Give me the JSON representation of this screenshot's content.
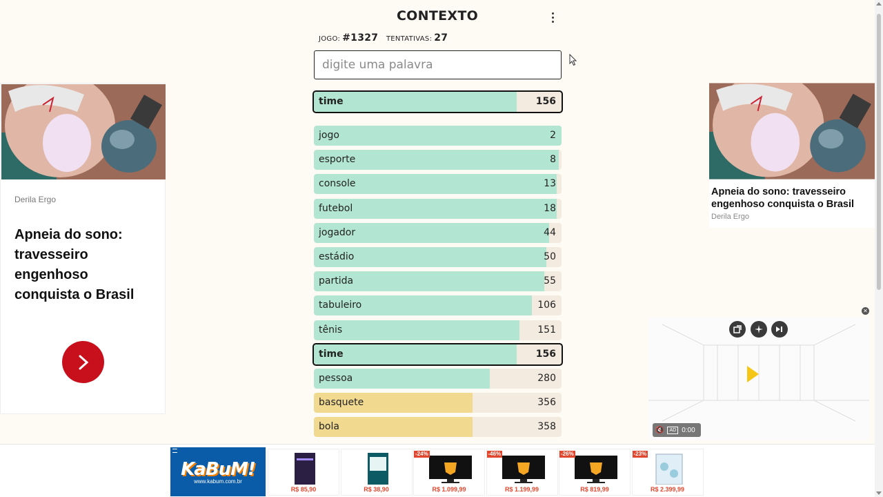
{
  "header": {
    "title": "CONTEXTO",
    "game_label": "JOGO:",
    "game_number": "#1327",
    "attempts_label": "TENTATIVAS:",
    "attempts_count": "27"
  },
  "search": {
    "placeholder": "digite uma palavra",
    "value": ""
  },
  "last_guess": {
    "word": "time",
    "rank": "156",
    "fill": 0.82,
    "color": "green"
  },
  "guesses": [
    {
      "word": "jogo",
      "rank": "2",
      "fill": 1.0,
      "color": "green"
    },
    {
      "word": "esporte",
      "rank": "8",
      "fill": 0.99,
      "color": "green"
    },
    {
      "word": "console",
      "rank": "13",
      "fill": 0.98,
      "color": "green"
    },
    {
      "word": "futebol",
      "rank": "18",
      "fill": 0.98,
      "color": "green"
    },
    {
      "word": "jogador",
      "rank": "44",
      "fill": 0.95,
      "color": "green"
    },
    {
      "word": "estádio",
      "rank": "50",
      "fill": 0.94,
      "color": "green"
    },
    {
      "word": "partida",
      "rank": "55",
      "fill": 0.93,
      "color": "green"
    },
    {
      "word": "tabuleiro",
      "rank": "106",
      "fill": 0.88,
      "color": "green"
    },
    {
      "word": "tênis",
      "rank": "151",
      "fill": 0.83,
      "color": "green"
    },
    {
      "word": "time",
      "rank": "156",
      "fill": 0.82,
      "color": "green",
      "highlight": true
    },
    {
      "word": "pessoa",
      "rank": "280",
      "fill": 0.71,
      "color": "green"
    },
    {
      "word": "basquete",
      "rank": "356",
      "fill": 0.64,
      "color": "yellow"
    },
    {
      "word": "bola",
      "rank": "358",
      "fill": 0.64,
      "color": "yellow"
    }
  ],
  "ad_left": {
    "brand": "Derila Ergo",
    "headline": "Apneia do sono: travesseiro engenhoso conquista o Brasil"
  },
  "ad_right": {
    "headline": "Apneia do sono: travesseiro engenhoso conquista o Brasil",
    "brand": "Derila Ergo"
  },
  "video_ad": {
    "time": "0:00",
    "badge": "AD"
  },
  "bottom_banner": {
    "brand": "KaBuM!",
    "url": "www.kabum.com.br",
    "products": [
      {
        "price": "R$ 85,90",
        "discount": "",
        "kind": "software"
      },
      {
        "price": "R$ 38,90",
        "discount": "",
        "kind": "box"
      },
      {
        "price": "R$ 1.099,99",
        "discount": "-24%",
        "kind": "monitor"
      },
      {
        "price": "R$ 1.199,99",
        "discount": "-46%",
        "kind": "monitor"
      },
      {
        "price": "R$ 819,99",
        "discount": "-26%",
        "kind": "monitor"
      },
      {
        "price": "R$ 2.399,99",
        "discount": "-23%",
        "kind": "pc"
      }
    ]
  },
  "colors": {
    "green": "#b2e6d3",
    "yellow": "#f1da90",
    "track": "#f3ebe0",
    "cta_red": "#c8101d",
    "kabum_blue": "#0a5ca8"
  }
}
